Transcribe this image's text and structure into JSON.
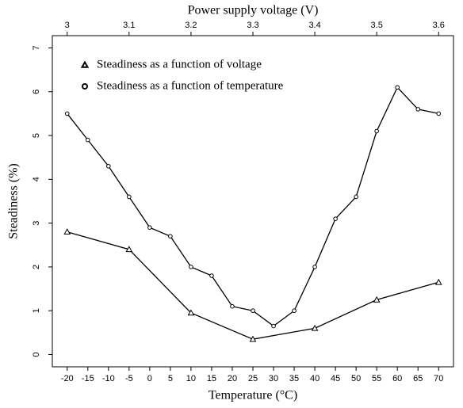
{
  "chart_data": {
    "type": "line",
    "xlabel": "Temperature (°C)",
    "x2label": "Power supply voltage (V)",
    "ylabel": "Steadiness (%)",
    "xlim": [
      -23.6,
      73.6
    ],
    "xticks": [
      -20,
      -15,
      -10,
      -5,
      0,
      5,
      10,
      15,
      20,
      25,
      30,
      35,
      40,
      45,
      50,
      55,
      60,
      65,
      70
    ],
    "x2lim": [
      2.976,
      3.624
    ],
    "x2ticks": [
      3,
      3.1,
      3.2,
      3.3,
      3.4,
      3.5,
      3.6
    ],
    "ylim": [
      -0.28,
      7.28
    ],
    "yticks": [
      0,
      1,
      2,
      3,
      4,
      5,
      6,
      7
    ],
    "legend": "top-left",
    "series": [
      {
        "name": "Steadiness as a function of voltage",
        "marker": "triangle",
        "color": "#000000",
        "axis": "x2",
        "x": [
          3,
          3.1,
          3.2,
          3.3,
          3.4,
          3.5,
          3.6
        ],
        "values": [
          2.8,
          2.4,
          0.95,
          0.35,
          0.6,
          1.25,
          1.65
        ]
      },
      {
        "name": "Steadiness as a function of temperature",
        "marker": "circle",
        "color": "#000000",
        "axis": "x",
        "x": [
          -20,
          -15,
          -10,
          -5,
          0,
          5,
          10,
          15,
          20,
          25,
          30,
          35,
          40,
          45,
          50,
          55,
          60,
          65,
          70
        ],
        "values": [
          5.5,
          4.9,
          4.3,
          3.6,
          2.9,
          2.7,
          2.0,
          1.8,
          1.1,
          1.0,
          0.65,
          1.0,
          2.0,
          3.1,
          3.6,
          5.1,
          6.1,
          5.6,
          5.5
        ]
      }
    ]
  }
}
